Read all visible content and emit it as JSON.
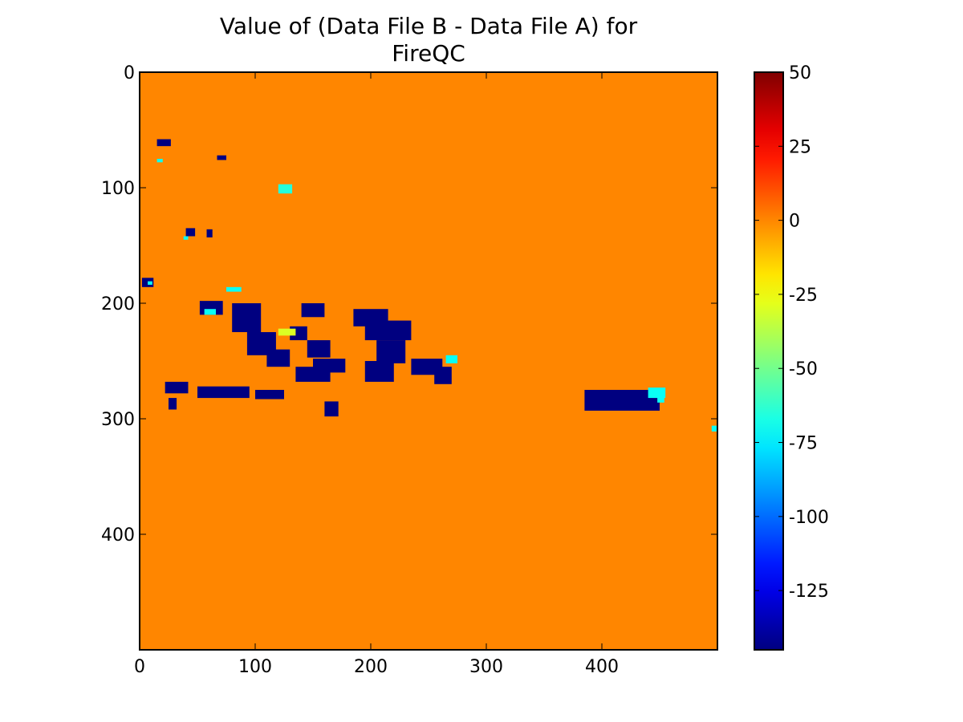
{
  "chart_data": {
    "type": "heatmap",
    "title_lines": [
      "Value of (Data File B - Data File A) for",
      "FireQC"
    ],
    "x_ticks": [
      0,
      100,
      200,
      300,
      400
    ],
    "y_ticks": [
      0,
      100,
      200,
      300,
      400
    ],
    "xlim": [
      0,
      500
    ],
    "ylim": [
      500,
      0
    ],
    "y_axis_inverted": true,
    "background_value": 0,
    "colormap": "jet",
    "colorbar": {
      "min": -145,
      "max": 50,
      "ticks": [
        50,
        25,
        0,
        -25,
        -50,
        -75,
        -100,
        -125
      ],
      "position": "right"
    },
    "regions": [
      {
        "x": [
          15,
          27
        ],
        "y": [
          58,
          64
        ],
        "value": -145
      },
      {
        "x": [
          67,
          75
        ],
        "y": [
          72,
          76
        ],
        "value": -145
      },
      {
        "x": [
          15,
          20
        ],
        "y": [
          75,
          78
        ],
        "value": -70
      },
      {
        "x": [
          120,
          132
        ],
        "y": [
          97,
          105
        ],
        "value": -65
      },
      {
        "x": [
          40,
          48
        ],
        "y": [
          135,
          142
        ],
        "value": -145
      },
      {
        "x": [
          58,
          63
        ],
        "y": [
          136,
          143
        ],
        "value": -145
      },
      {
        "x": [
          38,
          42
        ],
        "y": [
          142,
          145
        ],
        "value": -70
      },
      {
        "x": [
          2,
          12
        ],
        "y": [
          178,
          186
        ],
        "value": -145
      },
      {
        "x": [
          7,
          11
        ],
        "y": [
          181,
          184
        ],
        "value": -70
      },
      {
        "x": [
          52,
          72
        ],
        "y": [
          198,
          210
        ],
        "value": -145
      },
      {
        "x": [
          56,
          66
        ],
        "y": [
          205,
          210
        ],
        "value": -70
      },
      {
        "x": [
          80,
          105
        ],
        "y": [
          200,
          225
        ],
        "value": -145
      },
      {
        "x": [
          93,
          118
        ],
        "y": [
          225,
          245
        ],
        "value": -145
      },
      {
        "x": [
          110,
          130
        ],
        "y": [
          240,
          255
        ],
        "value": -145
      },
      {
        "x": [
          140,
          160
        ],
        "y": [
          200,
          212
        ],
        "value": -145
      },
      {
        "x": [
          130,
          145
        ],
        "y": [
          220,
          232
        ],
        "value": -145
      },
      {
        "x": [
          145,
          165
        ],
        "y": [
          232,
          247
        ],
        "value": -145
      },
      {
        "x": [
          150,
          178
        ],
        "y": [
          248,
          260
        ],
        "value": -145
      },
      {
        "x": [
          135,
          165
        ],
        "y": [
          255,
          268
        ],
        "value": -145
      },
      {
        "x": [
          185,
          215
        ],
        "y": [
          205,
          220
        ],
        "value": -145
      },
      {
        "x": [
          195,
          235
        ],
        "y": [
          215,
          232
        ],
        "value": -145
      },
      {
        "x": [
          205,
          230
        ],
        "y": [
          232,
          252
        ],
        "value": -145
      },
      {
        "x": [
          195,
          220
        ],
        "y": [
          250,
          268
        ],
        "value": -145
      },
      {
        "x": [
          235,
          262
        ],
        "y": [
          248,
          262
        ],
        "value": -145
      },
      {
        "x": [
          255,
          270
        ],
        "y": [
          255,
          270
        ],
        "value": -145
      },
      {
        "x": [
          265,
          275
        ],
        "y": [
          245,
          252
        ],
        "value": -70
      },
      {
        "x": [
          120,
          135
        ],
        "y": [
          222,
          228
        ],
        "value": -30
      },
      {
        "x": [
          22,
          42
        ],
        "y": [
          268,
          278
        ],
        "value": -145
      },
      {
        "x": [
          50,
          95
        ],
        "y": [
          272,
          282
        ],
        "value": -145
      },
      {
        "x": [
          100,
          125
        ],
        "y": [
          275,
          283
        ],
        "value": -145
      },
      {
        "x": [
          25,
          32
        ],
        "y": [
          282,
          292
        ],
        "value": -145
      },
      {
        "x": [
          160,
          172
        ],
        "y": [
          285,
          298
        ],
        "value": -145
      },
      {
        "x": [
          385,
          450
        ],
        "y": [
          275,
          293
        ],
        "value": -145
      },
      {
        "x": [
          440,
          455
        ],
        "y": [
          273,
          282
        ],
        "value": -70
      },
      {
        "x": [
          448,
          454
        ],
        "y": [
          280,
          286
        ],
        "value": -70
      },
      {
        "x": [
          75,
          88
        ],
        "y": [
          186,
          190
        ],
        "value": -70
      },
      {
        "x": [
          495,
          500
        ],
        "y": [
          306,
          311
        ],
        "value": -70
      }
    ]
  }
}
